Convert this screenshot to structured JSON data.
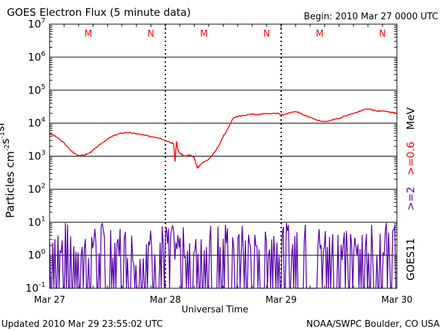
{
  "header": {
    "title": "GOES Electron Flux (5 minute data)",
    "begin": "Begin: 2010 Mar 27 0000 UTC"
  },
  "footer": {
    "updated": "Updated 2010 Mar 29 23:55:02 UTC",
    "credit": "NOAA/SWPC Boulder, CO USA"
  },
  "chart_data": {
    "type": "line",
    "title": "GOES Electron Flux (5 minute data)",
    "xlabel": "Universal Time",
    "ylabel": "Particles cm-2 s-1 sr-1",
    "yscale": "log",
    "ylim": [
      0.1,
      10000000
    ],
    "xlim": [
      0,
      72
    ],
    "x_unit": "hours since 2010 Mar 27 0000 UTC",
    "x_ticks": [
      {
        "x": 0,
        "label": "Mar 27"
      },
      {
        "x": 24,
        "label": "Mar 28"
      },
      {
        "x": 48,
        "label": "Mar 29"
      },
      {
        "x": 72,
        "label": "Mar 30"
      }
    ],
    "y_ticks": [
      {
        "exp": -1,
        "base": "10",
        "sup": "-1"
      },
      {
        "exp": 0,
        "base": "10",
        "sup": "0"
      },
      {
        "exp": 1,
        "base": "10",
        "sup": "1"
      },
      {
        "exp": 2,
        "base": "10",
        "sup": "2"
      },
      {
        "exp": 3,
        "base": "10",
        "sup": "3"
      },
      {
        "exp": 4,
        "base": "10",
        "sup": "4"
      },
      {
        "exp": 5,
        "base": "10",
        "sup": "5"
      },
      {
        "exp": 6,
        "base": "10",
        "sup": "6"
      },
      {
        "exp": 7,
        "base": "10",
        "sup": "7"
      }
    ],
    "threshold": 1000,
    "markers": [
      {
        "x": 8,
        "label": "M"
      },
      {
        "x": 21,
        "label": "N"
      },
      {
        "x": 32,
        "label": "M"
      },
      {
        "x": 45,
        "label": "N"
      },
      {
        "x": 56,
        "label": "M"
      },
      {
        "x": 69,
        "label": "N"
      }
    ],
    "right_labels": {
      "unit": "MeV",
      "red": ">=0.6",
      "purple": ">=2",
      "satellite": "GOES11"
    },
    "series": [
      {
        "name": ">=0.6 MeV",
        "color": "#ff0000",
        "x": [
          0,
          1,
          2,
          3,
          4,
          5,
          6,
          7,
          8,
          9,
          10,
          11,
          12,
          13,
          14,
          15,
          16,
          17,
          18,
          19,
          20,
          21,
          22,
          23,
          24,
          25,
          25.7,
          26,
          26.3,
          26.6,
          27,
          28,
          29,
          30,
          30.6,
          31,
          32,
          33,
          34,
          35,
          36,
          37,
          38,
          39,
          40,
          41,
          42,
          43,
          44,
          45,
          46,
          47,
          48,
          49,
          50,
          51,
          52,
          53,
          54,
          55,
          56,
          57,
          58,
          59,
          60,
          61,
          62,
          63,
          64,
          65,
          66,
          67,
          68,
          69,
          70,
          71,
          72
        ],
        "y": [
          4800,
          4200,
          3300,
          2500,
          1700,
          1250,
          1050,
          1070,
          1200,
          1500,
          2000,
          2600,
          3300,
          4000,
          4600,
          5000,
          5200,
          5000,
          4800,
          4500,
          4200,
          4000,
          3800,
          3500,
          3000,
          2600,
          2400,
          700,
          2800,
          1500,
          1200,
          1000,
          1100,
          900,
          450,
          500,
          700,
          800,
          1200,
          2000,
          4000,
          7000,
          14000,
          16000,
          17000,
          18000,
          19000,
          18000,
          19000,
          20000,
          19000,
          20000,
          18000,
          19000,
          21000,
          23000,
          20000,
          17000,
          15000,
          13000,
          12000,
          11000,
          12000,
          13000,
          14000,
          16000,
          18000,
          20000,
          22000,
          25000,
          27000,
          25000,
          23000,
          24000,
          22000,
          21000,
          20000
        ]
      },
      {
        "name": ">=2 MeV",
        "color": "#5500aa",
        "x": [
          0,
          3,
          6,
          9,
          12,
          15,
          18,
          21,
          24,
          27,
          30,
          33,
          36,
          39,
          42,
          45,
          48,
          51,
          54,
          57,
          60,
          63,
          66,
          69,
          72
        ],
        "y": [
          1,
          1.4,
          0.8,
          1.2,
          1.6,
          1,
          0.7,
          1.5,
          1.2,
          0.9,
          1.1,
          1.3,
          1.5,
          1.2,
          1.0,
          1.1,
          1.3,
          1.4,
          1.2,
          1.0,
          1.1,
          1.3,
          1.5,
          1.6,
          1.3
        ]
      }
    ]
  }
}
